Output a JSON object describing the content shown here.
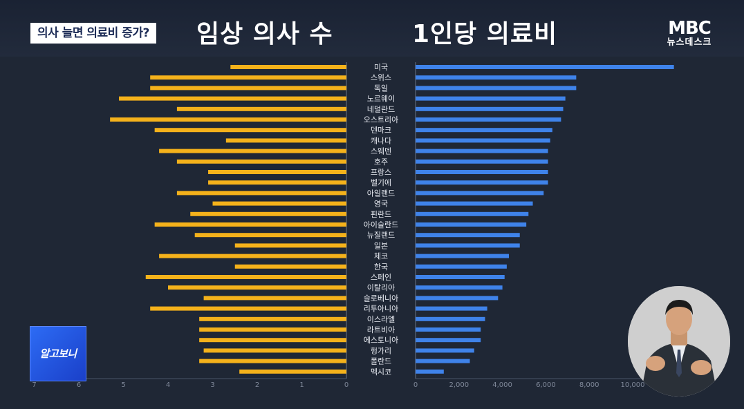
{
  "header": {
    "topic_caption": "의사 늘면 의료비 증가?",
    "left_title": "임상 의사 수",
    "right_title": "1인당 의료비"
  },
  "logo": {
    "mbc": "MBC",
    "newsdesk": "뉴스데스크"
  },
  "segment_badge": "알고보니",
  "colors": {
    "doctors_bar": "#f5b21b",
    "spending_bar": "#3f83ea",
    "background": "#1f2735"
  },
  "chart_data": [
    {
      "type": "bar",
      "orientation": "horizontal",
      "direction": "right-to-left",
      "title": "임상 의사 수",
      "categories": [
        "미국",
        "스위스",
        "독일",
        "노르웨이",
        "네덜란드",
        "오스트리아",
        "덴마크",
        "캐나다",
        "스웨덴",
        "호주",
        "프랑스",
        "벨기에",
        "아일랜드",
        "영국",
        "핀란드",
        "아이슬란드",
        "뉴질랜드",
        "일본",
        "체코",
        "한국",
        "스페인",
        "이탈리아",
        "슬로베니아",
        "리투아니아",
        "이스라엘",
        "라트비아",
        "에스토니아",
        "헝가리",
        "폴란드",
        "멕시코"
      ],
      "values": [
        2.6,
        4.4,
        4.4,
        5.1,
        3.8,
        5.3,
        4.3,
        2.7,
        4.2,
        3.8,
        3.1,
        3.1,
        3.8,
        3.0,
        3.5,
        4.3,
        3.4,
        2.5,
        4.2,
        2.5,
        4.5,
        4.0,
        3.2,
        4.4,
        3.3,
        3.3,
        3.3,
        3.2,
        3.3,
        2.4
      ],
      "ticks": [
        "0",
        "1",
        "2",
        "3",
        "4",
        "5",
        "6",
        "7"
      ],
      "xlim": [
        0,
        7
      ],
      "grid": false
    },
    {
      "type": "bar",
      "orientation": "horizontal",
      "title": "1인당 의료비",
      "categories": [
        "미국",
        "스위스",
        "독일",
        "노르웨이",
        "네덜란드",
        "오스트리아",
        "덴마크",
        "캐나다",
        "스웨덴",
        "호주",
        "프랑스",
        "벨기에",
        "아일랜드",
        "영국",
        "핀란드",
        "아이슬란드",
        "뉴질랜드",
        "일본",
        "체코",
        "한국",
        "스페인",
        "이탈리아",
        "슬로베니아",
        "리투아니아",
        "이스라엘",
        "라트비아",
        "에스토니아",
        "헝가리",
        "폴란드",
        "멕시코"
      ],
      "values": [
        11900,
        7400,
        7400,
        6900,
        6800,
        6700,
        6300,
        6200,
        6100,
        6100,
        6100,
        6100,
        5900,
        5400,
        5200,
        5100,
        4800,
        4800,
        4300,
        4200,
        4100,
        4000,
        3800,
        3300,
        3200,
        3000,
        3000,
        2700,
        2500,
        1300
      ],
      "ticks": [
        "0",
        "2,000",
        "4,000",
        "6,000",
        "8,000",
        "10,000"
      ],
      "xlim": [
        0,
        12000
      ],
      "grid": false
    }
  ]
}
